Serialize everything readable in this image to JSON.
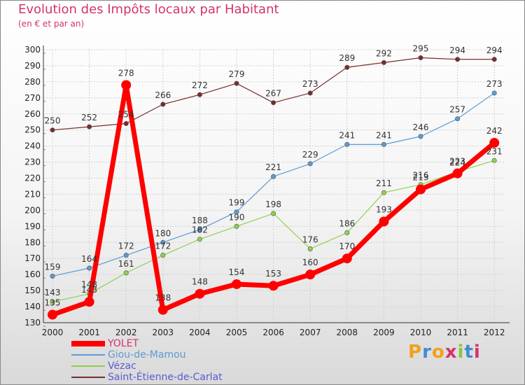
{
  "header": {
    "title": "Evolution des Impôts locaux par Habitant",
    "subtitle": "(en € et par an)"
  },
  "logo": {
    "letters": [
      "P",
      "r",
      "o",
      "x",
      "i",
      "t",
      "i"
    ],
    "colors": [
      "#f0a21b",
      "#3b8ed4",
      "#f0a21b",
      "#d6336c",
      "#8cc63f",
      "#3b8ed4",
      "#d6336c"
    ]
  },
  "chart_data": {
    "type": "line",
    "title": "Evolution des Impôts locaux par Habitant",
    "subtitle": "(en € et par an)",
    "xlabel": "",
    "ylabel": "",
    "x": [
      "2000",
      "2001",
      "2002",
      "2003",
      "2004",
      "2005",
      "2006",
      "2007",
      "2008",
      "2009",
      "2010",
      "2011",
      "2012"
    ],
    "ylim": [
      130,
      300
    ],
    "yticks": [
      130,
      140,
      150,
      160,
      170,
      180,
      190,
      200,
      210,
      220,
      230,
      240,
      250,
      260,
      270,
      280,
      290,
      300
    ],
    "grid": true,
    "legend_position": "bottom-left",
    "series": [
      {
        "name": "Saint-Étienne-de-Carlat",
        "color": "#7a2c2c",
        "thick": false,
        "values": [
          250,
          252,
          254,
          266,
          272,
          279,
          267,
          273,
          289,
          292,
          295,
          294,
          294
        ],
        "labels": [
          "250",
          "252",
          "254",
          "266",
          "272",
          "279",
          "267",
          "273",
          "289",
          "292",
          "295",
          "294",
          "294"
        ]
      },
      {
        "name": "Giou-de-Mamou",
        "color": "#5b9bd5",
        "thick": false,
        "values": [
          159,
          164,
          172,
          180,
          188,
          199,
          221,
          229,
          241,
          241,
          246,
          257,
          273
        ],
        "labels": [
          "159",
          "164",
          "172",
          "180",
          "188",
          "199",
          "221",
          "229",
          "241",
          "241",
          "246",
          "257",
          "273"
        ]
      },
      {
        "name": "Vézac",
        "color": "#8fd14f",
        "thick": false,
        "values": [
          143,
          148,
          161,
          172,
          182,
          190,
          198,
          176,
          186,
          211,
          216,
          224,
          231
        ],
        "labels": [
          "143",
          "148",
          "161",
          "172",
          "182",
          "190",
          "198",
          "176",
          "186",
          "211",
          "216",
          "224",
          "231"
        ]
      },
      {
        "name": "YOLET",
        "color": "#ff0000",
        "thick": true,
        "values": [
          135,
          143,
          278,
          138,
          148,
          154,
          153,
          160,
          170,
          193,
          213,
          223,
          242
        ],
        "labels": [
          "135",
          "143",
          "278",
          "138",
          "148",
          "154",
          "153",
          "160",
          "170",
          "193",
          "213",
          "223",
          "242"
        ]
      }
    ],
    "legend": [
      {
        "name": "YOLET",
        "color": "#ff0000",
        "text_color": "#d6336c",
        "thick": true
      },
      {
        "name": "Giou-de-Mamou",
        "color": "#5b9bd5",
        "text_color": "#5b9bd5",
        "thick": false
      },
      {
        "name": "Vézac",
        "color": "#8fd14f",
        "text_color": "#5b5bd6",
        "thick": false
      },
      {
        "name": "Saint-Étienne-de-Carlat",
        "color": "#7a2c2c",
        "text_color": "#5b5bd6",
        "thick": false
      }
    ]
  }
}
